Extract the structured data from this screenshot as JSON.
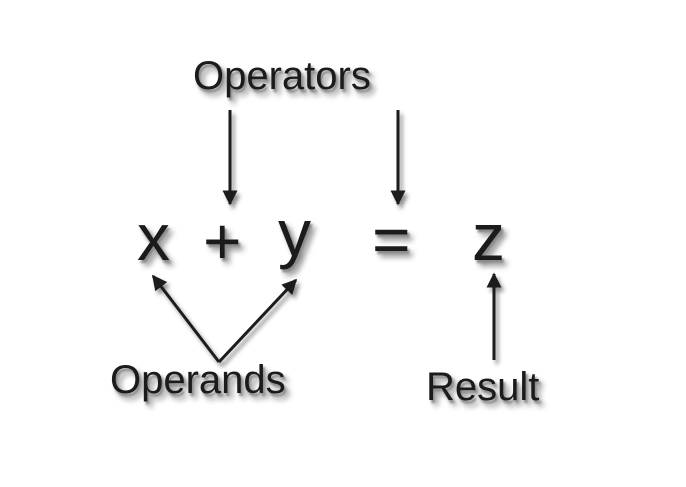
{
  "diagram": {
    "labels": {
      "operators": "Operators",
      "operands": "Operands",
      "result": "Result"
    },
    "equation": {
      "x": "x",
      "plus": "+",
      "y": "y",
      "equals": "=",
      "z": "z"
    },
    "colors": {
      "ink": "#1b1b1b",
      "shadow": "#8a8a8a",
      "background": "#ffffff"
    }
  }
}
